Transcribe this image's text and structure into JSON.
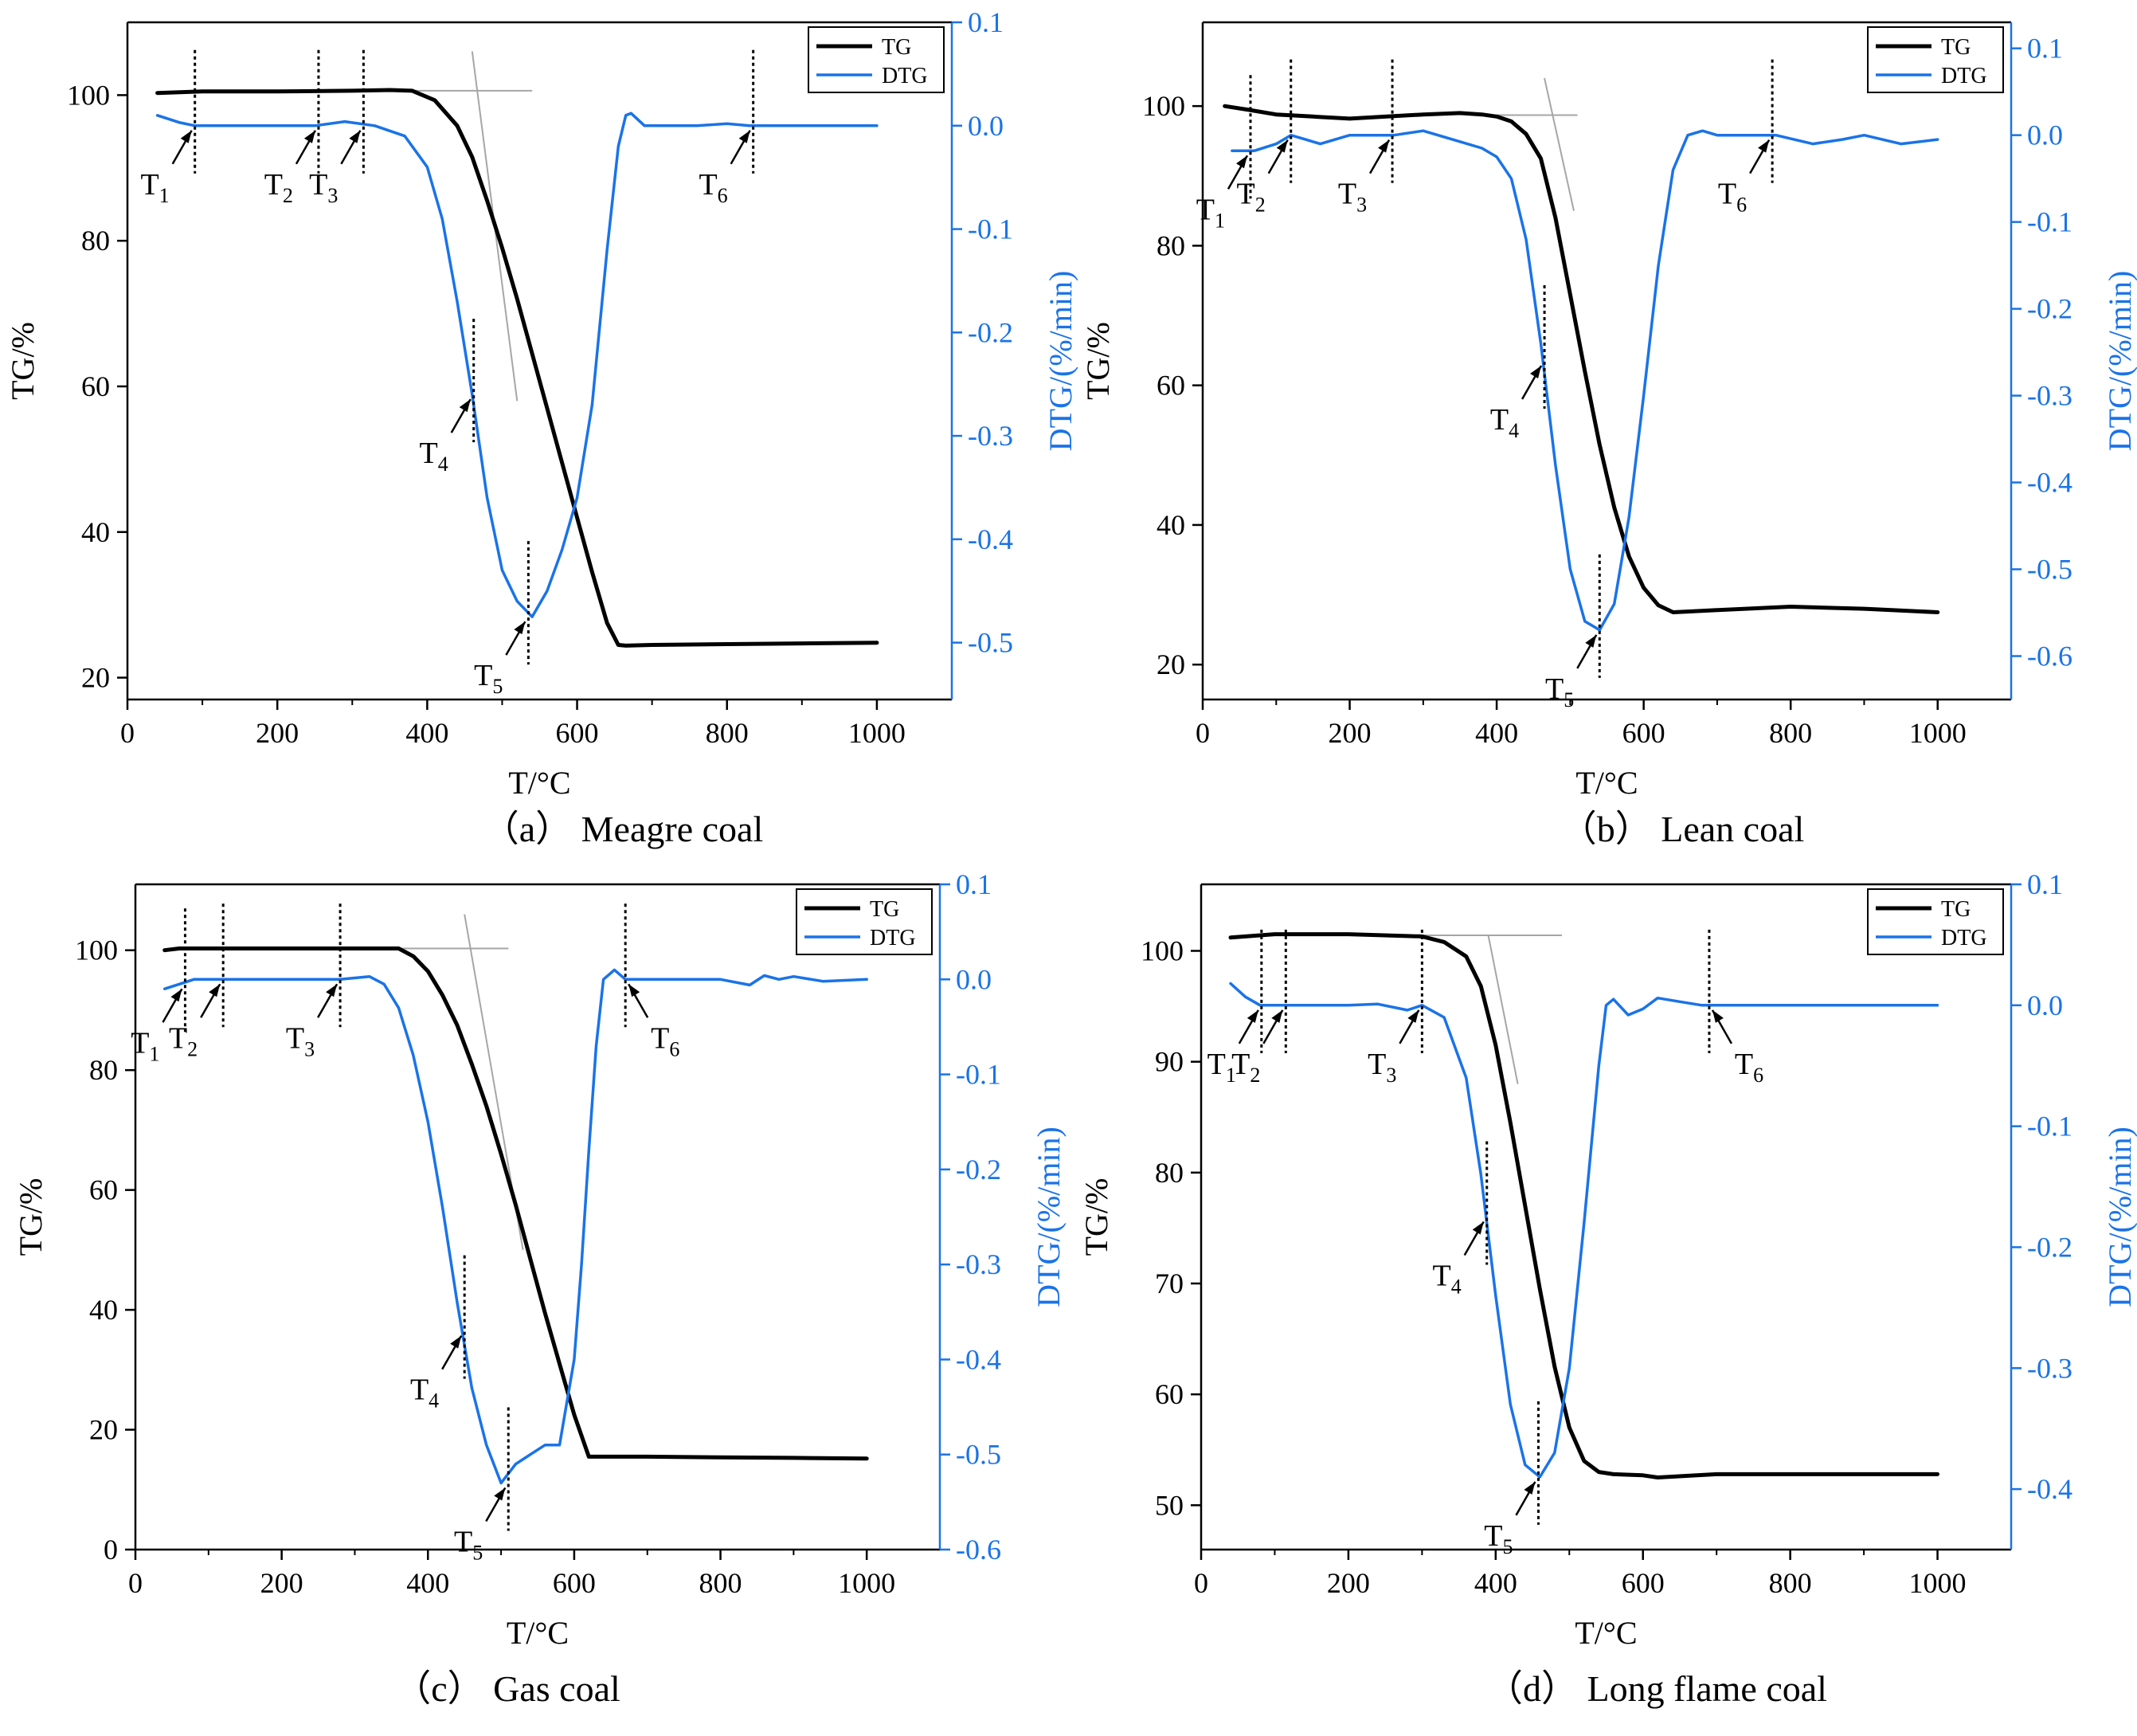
{
  "figure": {
    "colors": {
      "tg": "#000000",
      "dtg": "#1a73e8",
      "guide": "#a6a6a6",
      "frame": "#000000"
    },
    "legend": {
      "tg_label": "TG",
      "dtg_label": "DTG"
    }
  },
  "chart_data": [
    {
      "type": "line",
      "caption": "（a） Meagre coal",
      "xlabel": "T/°C",
      "ylabel": "TG/%",
      "y2label": "DTG/(%/min)",
      "xlim": [
        0,
        1100
      ],
      "xticks": [
        0,
        200,
        400,
        600,
        800,
        1000
      ],
      "ylim": [
        17,
        110
      ],
      "yticks": [
        20,
        40,
        60,
        80,
        100
      ],
      "y2lim": [
        -0.555,
        0.1
      ],
      "y2ticks": [
        "0.1",
        "0.0",
        "-0.1",
        "-0.2",
        "-0.3",
        "-0.4",
        "-0.5"
      ],
      "y2tick_values": [
        0.1,
        0.0,
        -0.1,
        -0.2,
        -0.3,
        -0.4,
        -0.5
      ],
      "legend_position": "top-right",
      "series": [
        {
          "name": "TG",
          "x": [
            40,
            100,
            200,
            300,
            350,
            380,
            410,
            440,
            460,
            480,
            500,
            520,
            540,
            560,
            580,
            600,
            620,
            640,
            655,
            665,
            700,
            800,
            900,
            1000
          ],
          "values": [
            100.3,
            100.5,
            100.5,
            100.6,
            100.7,
            100.6,
            99.3,
            95.8,
            91.5,
            85.5,
            79.0,
            72.0,
            64.5,
            57.0,
            49.5,
            42.0,
            34.5,
            27.5,
            24.5,
            24.4,
            24.5,
            24.6,
            24.7,
            24.8
          ]
        },
        {
          "name": "DTG",
          "x": [
            40,
            70,
            90,
            150,
            250,
            290,
            330,
            370,
            400,
            420,
            440,
            460,
            480,
            500,
            520,
            540,
            560,
            580,
            600,
            620,
            640,
            655,
            665,
            672,
            690,
            700,
            760,
            800,
            830,
            900,
            1000
          ],
          "values": [
            0.01,
            0.003,
            0.0,
            0.0,
            0.0,
            0.004,
            0.0,
            -0.01,
            -0.04,
            -0.09,
            -0.17,
            -0.26,
            -0.36,
            -0.43,
            -0.46,
            -0.475,
            -0.45,
            -0.41,
            -0.36,
            -0.27,
            -0.12,
            -0.02,
            0.01,
            0.012,
            0.0,
            0.0,
            0.0,
            0.002,
            0.0,
            0.0,
            0.0
          ]
        }
      ],
      "tangent": {
        "horizontal": {
          "x": [
            330,
            540
          ],
          "y": 100.6
        },
        "steep": {
          "x": [
            460,
            520
          ],
          "y": [
            106,
            58
          ]
        }
      },
      "markers": [
        {
          "label": "T",
          "sub": "1",
          "x": 90,
          "dtg": 0.0,
          "side": "left"
        },
        {
          "label": "T",
          "sub": "2",
          "x": 255,
          "dtg": 0.0,
          "side": "left"
        },
        {
          "label": "T",
          "sub": "3",
          "x": 315,
          "dtg": 0.0,
          "side": "left"
        },
        {
          "label": "T",
          "sub": "4",
          "x": 462,
          "dtg": -0.26,
          "side": "left"
        },
        {
          "label": "T",
          "sub": "5",
          "x": 535,
          "dtg": -0.475,
          "side": "left"
        },
        {
          "label": "T",
          "sub": "6",
          "x": 835,
          "dtg": 0.0,
          "side": "left"
        }
      ]
    },
    {
      "type": "line",
      "caption": "（b） Lean coal",
      "xlabel": "T/°C",
      "ylabel": "TG/%",
      "y2label": "DTG/(%/min)",
      "xlim": [
        0,
        1100
      ],
      "xticks": [
        0,
        200,
        400,
        600,
        800,
        1000
      ],
      "ylim": [
        15,
        112
      ],
      "yticks": [
        20,
        40,
        60,
        80,
        100
      ],
      "y2lim": [
        -0.65,
        0.13
      ],
      "y2ticks": [
        "0.1",
        "0.0",
        "-0.1",
        "-0.2",
        "-0.3",
        "-0.4",
        "-0.5",
        "-0.6"
      ],
      "y2tick_values": [
        0.1,
        0.0,
        -0.1,
        -0.2,
        -0.3,
        -0.4,
        -0.5,
        -0.6
      ],
      "legend_position": "top-right",
      "series": [
        {
          "name": "TG",
          "x": [
            30,
            60,
            100,
            150,
            200,
            250,
            300,
            350,
            380,
            400,
            420,
            440,
            460,
            480,
            500,
            520,
            540,
            560,
            580,
            600,
            620,
            640,
            660,
            700,
            800,
            900,
            1000
          ],
          "values": [
            100.0,
            99.5,
            98.8,
            98.5,
            98.2,
            98.5,
            98.8,
            99.0,
            98.8,
            98.5,
            97.8,
            96.0,
            92.5,
            84.0,
            73.0,
            62.0,
            51.5,
            42.5,
            35.5,
            31.0,
            28.5,
            27.5,
            27.6,
            27.8,
            28.3,
            28.0,
            27.5
          ]
        },
        {
          "name": "DTG",
          "x": [
            40,
            70,
            100,
            120,
            140,
            160,
            200,
            240,
            260,
            300,
            340,
            380,
            400,
            420,
            440,
            460,
            480,
            500,
            520,
            540,
            560,
            580,
            600,
            620,
            640,
            660,
            680,
            700,
            740,
            780,
            830,
            870,
            900,
            950,
            1000
          ],
          "values": [
            -0.018,
            -0.018,
            -0.01,
            0.0,
            -0.005,
            -0.01,
            0.0,
            0.0,
            0.0,
            0.005,
            -0.005,
            -0.015,
            -0.025,
            -0.05,
            -0.12,
            -0.24,
            -0.38,
            -0.5,
            -0.56,
            -0.57,
            -0.54,
            -0.44,
            -0.3,
            -0.15,
            -0.04,
            0.0,
            0.005,
            0.0,
            0.0,
            0.0,
            -0.01,
            -0.005,
            0.0,
            -0.01,
            -0.005
          ]
        }
      ],
      "tangent": {
        "horizontal": {
          "x": [
            390,
            510
          ],
          "y": 98.7
        },
        "steep": {
          "x": [
            465,
            505
          ],
          "y": [
            104,
            85
          ]
        }
      },
      "markers": [
        {
          "label": "T",
          "sub": "1",
          "x": 65,
          "dtg": -0.018,
          "side": "left"
        },
        {
          "label": "T",
          "sub": "2",
          "x": 120,
          "dtg": 0.0,
          "side": "left"
        },
        {
          "label": "T",
          "sub": "3",
          "x": 258,
          "dtg": 0.0,
          "side": "left"
        },
        {
          "label": "T",
          "sub": "4",
          "x": 465,
          "dtg": -0.26,
          "side": "left"
        },
        {
          "label": "T",
          "sub": "5",
          "x": 540,
          "dtg": -0.57,
          "side": "left"
        },
        {
          "label": "T",
          "sub": "6",
          "x": 775,
          "dtg": 0.0,
          "side": "left"
        }
      ]
    },
    {
      "type": "line",
      "caption": "（c） Gas coal",
      "xlabel": "T/°C",
      "ylabel": "TG/%",
      "y2label": "DTG/(%/min)",
      "xlim": [
        0,
        1100
      ],
      "xticks": [
        0,
        200,
        400,
        600,
        800,
        1000
      ],
      "ylim": [
        0,
        111
      ],
      "yticks": [
        0,
        20,
        40,
        60,
        80,
        100
      ],
      "y2lim": [
        -0.6,
        0.1
      ],
      "y2ticks": [
        "0.1",
        "0.0",
        "-0.1",
        "-0.2",
        "-0.3",
        "-0.4",
        "-0.5",
        "-0.6"
      ],
      "y2tick_values": [
        0.1,
        0.0,
        -0.1,
        -0.2,
        -0.3,
        -0.4,
        -0.5,
        -0.6
      ],
      "legend_position": "top-right",
      "series": [
        {
          "name": "TG",
          "x": [
            40,
            60,
            100,
            200,
            300,
            360,
            380,
            400,
            420,
            440,
            460,
            480,
            500,
            520,
            540,
            560,
            580,
            600,
            620,
            640,
            700,
            800,
            900,
            1000
          ],
          "values": [
            100.0,
            100.3,
            100.3,
            100.3,
            100.3,
            100.3,
            99.0,
            96.5,
            92.5,
            87.5,
            81.0,
            74.0,
            66.0,
            57.5,
            48.5,
            39.5,
            31.0,
            22.5,
            15.5,
            15.5,
            15.5,
            15.4,
            15.3,
            15.2
          ]
        },
        {
          "name": "DTG",
          "x": [
            40,
            60,
            80,
            110,
            200,
            280,
            320,
            340,
            360,
            380,
            400,
            420,
            440,
            460,
            480,
            500,
            520,
            540,
            560,
            580,
            600,
            610,
            620,
            630,
            640,
            655,
            670,
            700,
            800,
            840,
            860,
            880,
            900,
            940,
            1000
          ],
          "values": [
            -0.01,
            -0.005,
            0.0,
            0.0,
            0.0,
            0.0,
            0.003,
            -0.005,
            -0.03,
            -0.08,
            -0.15,
            -0.24,
            -0.34,
            -0.43,
            -0.49,
            -0.53,
            -0.51,
            -0.5,
            -0.49,
            -0.49,
            -0.4,
            -0.3,
            -0.18,
            -0.07,
            0.0,
            0.01,
            0.0,
            0.0,
            0.0,
            -0.006,
            0.004,
            0.0,
            0.003,
            -0.002,
            0.0
          ]
        }
      ],
      "tangent": {
        "horizontal": {
          "x": [
            340,
            510
          ],
          "y": 100.3
        },
        "steep": {
          "x": [
            450,
            530
          ],
          "y": [
            106,
            50
          ]
        }
      },
      "markers": [
        {
          "label": "T",
          "sub": "1",
          "x": 68,
          "dtg": -0.005,
          "side": "left"
        },
        {
          "label": "T",
          "sub": "2",
          "x": 120,
          "dtg": 0.0,
          "side": "left"
        },
        {
          "label": "T",
          "sub": "3",
          "x": 280,
          "dtg": 0.0,
          "side": "left"
        },
        {
          "label": "T",
          "sub": "4",
          "x": 450,
          "dtg": -0.37,
          "side": "left"
        },
        {
          "label": "T",
          "sub": "5",
          "x": 510,
          "dtg": -0.53,
          "side": "left"
        },
        {
          "label": "T",
          "sub": "6",
          "x": 670,
          "dtg": 0.0,
          "side": "right"
        }
      ]
    },
    {
      "type": "line",
      "caption": "（d） Long flame coal",
      "xlabel": "T/°C",
      "ylabel": "TG/%",
      "y2label": "DTG/(%/min)",
      "xlim": [
        0,
        1100
      ],
      "xticks": [
        0,
        200,
        400,
        600,
        800,
        1000
      ],
      "ylim": [
        46,
        106
      ],
      "yticks": [
        50,
        60,
        70,
        80,
        90,
        100
      ],
      "y2lim": [
        -0.45,
        0.1
      ],
      "y2ticks": [
        "0.1",
        "0.0",
        "-0.1",
        "-0.2",
        "-0.3",
        "-0.4"
      ],
      "y2tick_values": [
        0.1,
        0.0,
        -0.1,
        -0.2,
        -0.3,
        -0.4
      ],
      "legend_position": "top-right",
      "series": [
        {
          "name": "TG",
          "x": [
            40,
            100,
            200,
            300,
            330,
            360,
            380,
            400,
            420,
            440,
            460,
            480,
            500,
            520,
            540,
            560,
            600,
            620,
            700,
            800,
            900,
            1000
          ],
          "values": [
            101.2,
            101.5,
            101.5,
            101.3,
            100.8,
            99.5,
            96.8,
            91.5,
            84.5,
            77.0,
            69.5,
            62.5,
            57.0,
            54.0,
            53.0,
            52.8,
            52.7,
            52.5,
            52.8,
            52.8,
            52.8,
            52.8
          ]
        },
        {
          "name": "DTG",
          "x": [
            40,
            60,
            80,
            100,
            150,
            200,
            240,
            280,
            300,
            330,
            360,
            380,
            400,
            420,
            440,
            460,
            480,
            500,
            520,
            540,
            550,
            560,
            580,
            600,
            620,
            650,
            680,
            700,
            800,
            900,
            1000
          ],
          "values": [
            0.018,
            0.007,
            0.0,
            0.0,
            0.0,
            0.0,
            0.001,
            -0.004,
            0.0,
            -0.01,
            -0.06,
            -0.14,
            -0.24,
            -0.33,
            -0.38,
            -0.39,
            -0.37,
            -0.3,
            -0.18,
            -0.05,
            0.0,
            0.005,
            -0.008,
            -0.003,
            0.006,
            0.003,
            0.0,
            0.0,
            0.0,
            0.0,
            0.0
          ]
        }
      ],
      "tangent": {
        "horizontal": {
          "x": [
            300,
            490
          ],
          "y": 101.4
        },
        "steep": {
          "x": [
            390,
            430
          ],
          "y": [
            101.4,
            88
          ]
        }
      },
      "markers": [
        {
          "label": "T",
          "sub": "1",
          "x": 82,
          "dtg": 0.0,
          "side": "left"
        },
        {
          "label": "T",
          "sub": "2",
          "x": 115,
          "dtg": 0.0,
          "side": "left"
        },
        {
          "label": "T",
          "sub": "3",
          "x": 300,
          "dtg": 0.0,
          "side": "left"
        },
        {
          "label": "T",
          "sub": "4",
          "x": 388,
          "dtg": -0.175,
          "side": "left"
        },
        {
          "label": "T",
          "sub": "5",
          "x": 458,
          "dtg": -0.39,
          "side": "left"
        },
        {
          "label": "T",
          "sub": "6",
          "x": 690,
          "dtg": 0.0,
          "side": "right"
        }
      ]
    }
  ]
}
